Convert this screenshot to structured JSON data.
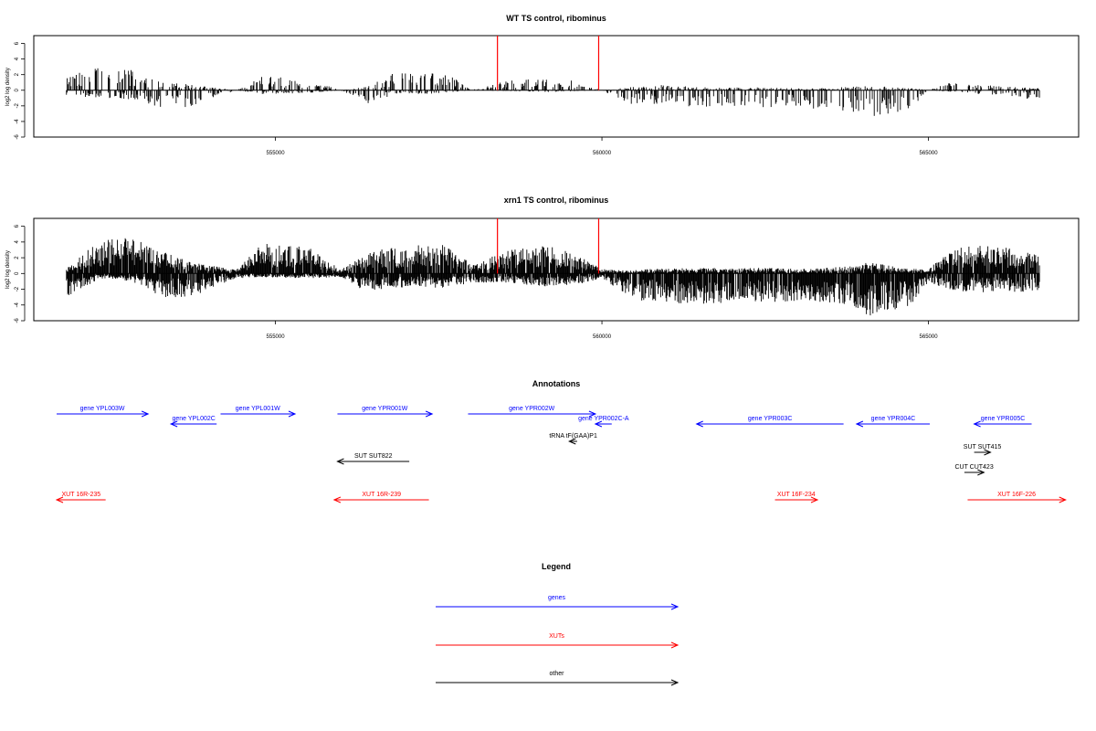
{
  "chart_data": [
    {
      "type": "bar",
      "title": "WT TS control, ribominus",
      "ylabel": "log2 log density",
      "xlim": [
        551300,
        567300
      ],
      "ylim": [
        -6,
        7
      ],
      "yticks": [
        6,
        4,
        2,
        0,
        -2,
        -4,
        -6
      ],
      "xticks": [
        555000,
        560000,
        565000
      ],
      "baseline": {
        "from": 551800,
        "to": 566700
      },
      "series": [
        {
          "color": "#000000",
          "density": 0.35,
          "profile": [
            [
              551800,
              1.5,
              -0.6
            ],
            [
              552300,
              2.5,
              -0.8
            ],
            [
              552800,
              2.2,
              -1.0
            ],
            [
              553200,
              1.0,
              -1.8
            ],
            [
              553700,
              0.6,
              -1.8
            ],
            [
              554400,
              0,
              0
            ],
            [
              554800,
              1.5,
              -0.4
            ],
            [
              555500,
              1.2,
              -0.3
            ],
            [
              556000,
              0,
              0
            ],
            [
              556400,
              0.4,
              -1.5
            ],
            [
              556800,
              1.8,
              -0.5
            ],
            [
              557600,
              2.0,
              -0.3
            ],
            [
              558000,
              0,
              0
            ],
            [
              558600,
              1.2,
              -0.1
            ],
            [
              559200,
              1.4,
              -0.2
            ],
            [
              559600,
              1.0,
              -0.1
            ],
            [
              560000,
              0,
              0
            ],
            [
              560400,
              0.3,
              -1.5
            ],
            [
              560800,
              0.6,
              -1.6
            ],
            [
              561600,
              0.3,
              -1.8
            ],
            [
              562400,
              0.3,
              -1.8
            ],
            [
              563200,
              0.2,
              -2.0
            ],
            [
              563800,
              0.4,
              -2.2
            ],
            [
              564100,
              0.5,
              -2.8
            ],
            [
              564700,
              0.3,
              -2.3
            ],
            [
              565000,
              0,
              0
            ],
            [
              565400,
              1.0,
              -0.2
            ],
            [
              566000,
              0.5,
              -0.5
            ],
            [
              566700,
              0.2,
              -1.2
            ]
          ]
        },
        {
          "color": "#ff0000",
          "bars": [
            {
              "x": 558400,
              "y": 7
            },
            {
              "x": 559950,
              "y": 7
            }
          ]
        }
      ]
    },
    {
      "type": "bar",
      "title": "xrn1 TS control, ribominus",
      "ylabel": "log2 log density",
      "xlim": [
        551300,
        567300
      ],
      "ylim": [
        -6,
        7
      ],
      "yticks": [
        6,
        4,
        2,
        0,
        -2,
        -4,
        -6
      ],
      "xticks": [
        555000,
        560000,
        565000
      ],
      "baseline": {
        "from": 551800,
        "to": 566700
      },
      "series": [
        {
          "color": "#000000",
          "density": 0.9,
          "profile": [
            [
              551800,
              0.5,
              -2.5
            ],
            [
              552300,
              3.5,
              -0.6
            ],
            [
              552800,
              3.8,
              -0.8
            ],
            [
              553200,
              2.5,
              -2.5
            ],
            [
              553700,
              1.2,
              -2.5
            ],
            [
              554400,
              0.4,
              -0.5
            ],
            [
              554800,
              3.2,
              -0.4
            ],
            [
              555500,
              2.8,
              -0.5
            ],
            [
              556000,
              0.4,
              -0.4
            ],
            [
              556400,
              2.2,
              -2.0
            ],
            [
              556800,
              2.8,
              -1.5
            ],
            [
              557600,
              3.2,
              -1.5
            ],
            [
              558000,
              1.0,
              -1.0
            ],
            [
              558600,
              2.5,
              -1.0
            ],
            [
              559200,
              3.0,
              -1.5
            ],
            [
              559600,
              2.0,
              -1.2
            ],
            [
              560000,
              0.5,
              -0.5
            ],
            [
              560400,
              0.3,
              -2.5
            ],
            [
              560800,
              0.5,
              -3.2
            ],
            [
              561600,
              0.6,
              -3.2
            ],
            [
              562400,
              0.6,
              -3.0
            ],
            [
              563200,
              0.5,
              -3.0
            ],
            [
              563800,
              0.8,
              -3.5
            ],
            [
              564100,
              1.2,
              -4.5
            ],
            [
              564700,
              0.5,
              -3.5
            ],
            [
              565000,
              0.5,
              -1.0
            ],
            [
              565400,
              2.8,
              -2.0
            ],
            [
              566000,
              3.0,
              -2.0
            ],
            [
              566700,
              2.0,
              -2.0
            ]
          ]
        },
        {
          "color": "#ff0000",
          "bars": [
            {
              "x": 558400,
              "y": 7
            },
            {
              "x": 559950,
              "y": 7
            }
          ]
        }
      ]
    }
  ],
  "annotations": {
    "title": "Annotations",
    "items": [
      {
        "label": "gene YPL003W",
        "color": "#0000ff",
        "from": 551650,
        "to": 553050,
        "row": 0
      },
      {
        "label": "gene YPL002C",
        "color": "#0000ff",
        "from": 554100,
        "to": 553400,
        "row": 1
      },
      {
        "label": "gene YPL001W",
        "color": "#0000ff",
        "from": 554160,
        "to": 555300,
        "row": 0
      },
      {
        "label": "gene YPR001W",
        "color": "#0000ff",
        "from": 555950,
        "to": 557400,
        "row": 0
      },
      {
        "label": "gene YPR002W",
        "color": "#0000ff",
        "from": 557950,
        "to": 559900,
        "row": 0
      },
      {
        "label": "gene YPR002C-A",
        "color": "#0000ff",
        "from": 560150,
        "to": 559900,
        "row": 1
      },
      {
        "label": "gene YPR003C",
        "color": "#0000ff",
        "from": 563700,
        "to": 561450,
        "row": 1
      },
      {
        "label": "gene YPR004C",
        "color": "#0000ff",
        "from": 565020,
        "to": 563900,
        "row": 1
      },
      {
        "label": "gene YPR005C",
        "color": "#0000ff",
        "from": 566580,
        "to": 565700,
        "row": 1
      },
      {
        "label": "tRNA tF(GAA)P1",
        "color": "#000000",
        "from": 559620,
        "to": 559500,
        "row": 2
      },
      {
        "label": "SUT SUT822",
        "color": "#000000",
        "from": 557050,
        "to": 555950,
        "row": 3
      },
      {
        "label": "SUT SUT415",
        "color": "#000000",
        "from": 565700,
        "to": 565950,
        "row": 4
      },
      {
        "label": "CUT CUT423",
        "color": "#000000",
        "from": 565550,
        "to": 565850,
        "row": 5
      },
      {
        "label": "XUT 16R-235",
        "color": "#ff0000",
        "from": 552400,
        "to": 551650,
        "row": 6
      },
      {
        "label": "XUT 16R-239",
        "color": "#ff0000",
        "from": 557350,
        "to": 555900,
        "row": 6
      },
      {
        "label": "XUT 16F-234",
        "color": "#ff0000",
        "from": 562650,
        "to": 563300,
        "row": 6
      },
      {
        "label": "XUT 16F-226",
        "color": "#ff0000",
        "from": 565600,
        "to": 567100,
        "row": 6
      }
    ]
  },
  "legend": {
    "title": "Legend",
    "items": [
      {
        "label": "genes",
        "color": "#0000ff"
      },
      {
        "label": "XUTs",
        "color": "#ff0000"
      },
      {
        "label": "other",
        "color": "#000000"
      }
    ]
  }
}
